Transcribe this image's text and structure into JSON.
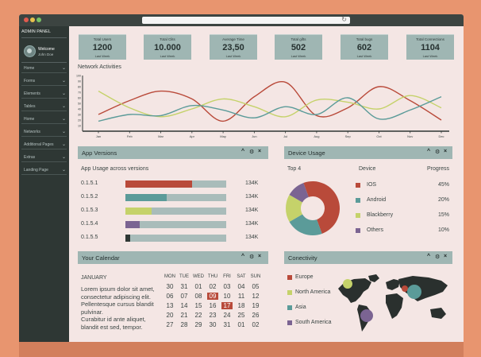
{
  "app": {
    "admin_title": "ADMIN PANEL",
    "welcome": "Welcome",
    "username": "John Doe"
  },
  "nav": {
    "items": [
      {
        "label": "Home"
      },
      {
        "label": "Forms"
      },
      {
        "label": "Elements"
      },
      {
        "label": "Tables"
      },
      {
        "label": "Home"
      },
      {
        "label": "Networks"
      },
      {
        "label": "Additional Pages"
      },
      {
        "label": "Extras"
      },
      {
        "label": "Landing Page"
      }
    ]
  },
  "stats": [
    {
      "label": "Total Users",
      "value": "1200",
      "sub": "Last Week"
    },
    {
      "label": "Total Clits",
      "value": "10.000",
      "sub": "Last Week"
    },
    {
      "label": "Average Time",
      "value": "23,50",
      "sub": "Last Week"
    },
    {
      "label": "Total gifts",
      "value": "502",
      "sub": "Last Week"
    },
    {
      "label": "Total bugs",
      "value": "602",
      "sub": "Last Week"
    },
    {
      "label": "Total Connections",
      "value": "1104",
      "sub": "Last Week"
    }
  ],
  "network": {
    "title": "Network Activities",
    "months": [
      "Jan",
      "Feb",
      "Mar",
      "Apr",
      "May",
      "Jun",
      "Jul",
      "Aug",
      "Sep",
      "Oct",
      "Nov",
      "Dec"
    ],
    "yticks": [
      "10",
      "20",
      "30",
      "40",
      "50",
      "60",
      "70",
      "80",
      "90",
      "100"
    ]
  },
  "chart_data": {
    "type": "line",
    "x": [
      "Jan",
      "Feb",
      "Mar",
      "Apr",
      "May",
      "Jun",
      "Jul",
      "Aug",
      "Sep",
      "Oct",
      "Nov",
      "Dec"
    ],
    "series": [
      {
        "color": "#b94a3a",
        "values": [
          30,
          55,
          72,
          58,
          18,
          62,
          88,
          28,
          42,
          80,
          55,
          20
        ]
      },
      {
        "color": "#c5d26a",
        "values": [
          72,
          42,
          26,
          40,
          58,
          44,
          26,
          56,
          52,
          40,
          64,
          42
        ]
      },
      {
        "color": "#5b9b99",
        "values": [
          18,
          30,
          28,
          46,
          38,
          24,
          44,
          30,
          60,
          22,
          38,
          62
        ]
      }
    ],
    "ylim": [
      0,
      100
    ],
    "yticks": [
      10,
      20,
      30,
      40,
      50,
      60,
      70,
      80,
      90,
      100
    ],
    "grid": false
  },
  "app_versions": {
    "title": "App Versions",
    "subtitle": "App Usage across versions",
    "rows": [
      {
        "version": "0.1.5.1",
        "value": "134K",
        "fill": 0.66,
        "color": "#b94a3a"
      },
      {
        "version": "0.1.5.2",
        "value": "134K",
        "fill": 0.41,
        "color": "#5b9b99"
      },
      {
        "version": "0.1.5.3",
        "value": "134K",
        "fill": 0.26,
        "color": "#c5d26a"
      },
      {
        "version": "0.1.5.4",
        "value": "134K",
        "fill": 0.14,
        "color": "#7b6492"
      },
      {
        "version": "0.1.5.5",
        "value": "134K",
        "fill": 0.05,
        "color": "#2e3734"
      }
    ]
  },
  "device_usage": {
    "title": "Device Usage",
    "top_label": "Top 4",
    "device_header": "Device",
    "progress_header": "Progress",
    "items": [
      {
        "name": "IOS",
        "progress": "45%",
        "color": "#b94a3a"
      },
      {
        "name": "Android",
        "progress": "20%",
        "color": "#5b9b99"
      },
      {
        "name": "Blackberry",
        "progress": "15%",
        "color": "#c5d26a"
      },
      {
        "name": "Others",
        "progress": "10%",
        "color": "#7b6492"
      }
    ]
  },
  "calendar": {
    "title": "Your Calendar",
    "month": "JANUARY",
    "text": [
      "Lorem ipsum dolor sit amet,",
      "consectetur adipiscing elit.",
      "Pellentesque cursus blandit",
      "pulvinar.",
      "Curabitur id ante aliquet,",
      "blandit est sed, tempor."
    ],
    "days": [
      "MON",
      "TUE",
      "WED",
      "THU",
      "FRI",
      "SAT",
      "SUN"
    ],
    "weeks": [
      [
        "30",
        "31",
        "01",
        "02",
        "03",
        "04",
        "05"
      ],
      [
        "06",
        "07",
        "08",
        "09",
        "10",
        "11",
        "12"
      ],
      [
        "13",
        "14",
        "15",
        "16",
        "17",
        "18",
        "19"
      ],
      [
        "20",
        "21",
        "22",
        "23",
        "24",
        "25",
        "26"
      ],
      [
        "27",
        "28",
        "29",
        "30",
        "31",
        "01",
        "02"
      ]
    ],
    "highlighted": [
      "09",
      "17"
    ]
  },
  "connectivity": {
    "title": "Conectivity",
    "items": [
      {
        "name": "Europe",
        "color": "#b94a3a"
      },
      {
        "name": "North America",
        "color": "#c5d26a"
      },
      {
        "name": "Asia",
        "color": "#5b9b99"
      },
      {
        "name": "South America",
        "color": "#7b6492"
      }
    ]
  },
  "controls": {
    "collapse": "^",
    "settings": "⚙",
    "close": "×"
  }
}
